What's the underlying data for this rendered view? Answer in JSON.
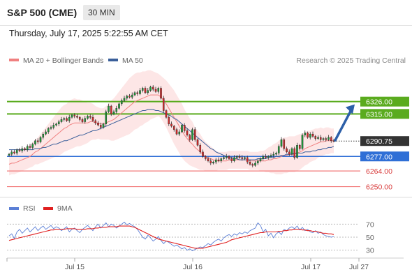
{
  "header": {
    "symbol": "S&P 500 (CME)",
    "timeframe": "30 MIN",
    "timestamp": "Thursday, July 17, 2025 5:22:55 AM CET"
  },
  "legend": {
    "ma20_label": "MA 20 + Bollinger Bands",
    "ma50_label": "MA 50",
    "copyright": "Research © 2025 Trading Central",
    "ma20_color": "#f08080",
    "ma50_color": "#3a5f9a"
  },
  "rsi_legend": {
    "rsi_label": "RSI",
    "ma_label": "9MA",
    "rsi_color": "#5b7fd6",
    "ma_color": "#e02020"
  },
  "chart_data": [
    {
      "type": "candlestick",
      "title": "",
      "x_labels": [
        "Jul 15",
        "Jul 16",
        "Jul 17",
        "Jul 27"
      ],
      "ylim": [
        6241,
        6347
      ],
      "current_price": {
        "value": 6290.75,
        "label": "6290.75",
        "color": "#333333"
      },
      "levels": [
        {
          "value": 6326.0,
          "label": "6326.00",
          "kind": "resistance",
          "color": "#5aab1e"
        },
        {
          "value": 6315.0,
          "label": "6315.00",
          "kind": "resistance",
          "color": "#5aab1e"
        },
        {
          "value": 6277.0,
          "label": "6277.00",
          "kind": "pivot",
          "color": "#2f6fd6"
        },
        {
          "value": 6264.0,
          "label": "6264.00",
          "kind": "support",
          "color": "#f27a7a"
        },
        {
          "value": 6250.0,
          "label": "6250.00",
          "kind": "support",
          "color": "#f27a7a"
        }
      ],
      "candles_close": [
        6279,
        6281,
        6280,
        6283,
        6282,
        6284,
        6283,
        6286,
        6285,
        6288,
        6291,
        6290,
        6294,
        6297,
        6299,
        6302,
        6303,
        6305,
        6306,
        6308,
        6310,
        6311,
        6309,
        6312,
        6314,
        6313,
        6312,
        6310,
        6308,
        6311,
        6313,
        6312,
        6309,
        6307,
        6305,
        6303,
        6306,
        6317,
        6322,
        6315,
        6317,
        6320,
        6324,
        6327,
        6329,
        6331,
        6330,
        6332,
        6334,
        6333,
        6336,
        6338,
        6334,
        6336,
        6339,
        6337,
        6335,
        6338,
        6329,
        6318,
        6312,
        6306,
        6304,
        6301,
        6297,
        6299,
        6305,
        6300,
        6296,
        6292,
        6301,
        6292,
        6287,
        6281,
        6277,
        6275,
        6273,
        6271,
        6272,
        6274,
        6273,
        6275,
        6276,
        6277,
        6275,
        6273,
        6276,
        6277,
        6276,
        6275,
        6276,
        6272,
        6270,
        6269,
        6271,
        6273,
        6275,
        6277,
        6276,
        6277,
        6278,
        6279,
        6280,
        6286,
        6292,
        6284,
        6281,
        6279,
        6284,
        6276,
        6287,
        6284,
        6296,
        6298,
        6294,
        6297,
        6295,
        6293,
        6294,
        6292,
        6293,
        6292,
        6294,
        6291,
        6290.75
      ],
      "ma20": [
        6270,
        6271,
        6271,
        6272,
        6273,
        6274,
        6275,
        6276,
        6277,
        6279,
        6281,
        6282,
        6284,
        6286,
        6288,
        6290,
        6292,
        6294,
        6296,
        6298,
        6300,
        6302,
        6303,
        6305,
        6306,
        6307,
        6307,
        6307,
        6307,
        6307,
        6307,
        6308,
        6308,
        6307,
        6307,
        6306,
        6306,
        6307,
        6308,
        6309,
        6310,
        6312,
        6314,
        6316,
        6318,
        6320,
        6322,
        6324,
        6326,
        6327,
        6328,
        6329,
        6330,
        6331,
        6332,
        6332,
        6332,
        6332,
        6330,
        6327,
        6324,
        6320,
        6316,
        6312,
        6308,
        6304,
        6300,
        6296,
        6293,
        6290,
        6288,
        6285,
        6283,
        6281,
        6279,
        6277,
        6276,
        6275,
        6274,
        6273,
        6273,
        6273,
        6273,
        6273,
        6274,
        6274,
        6274,
        6274,
        6274,
        6274,
        6274,
        6274,
        6273,
        6273,
        6273,
        6273,
        6273,
        6273,
        6273,
        6274,
        6274,
        6275,
        6275,
        6276,
        6277,
        6278,
        6278,
        6279,
        6279,
        6279,
        6280,
        6281,
        6282,
        6284,
        6285,
        6286,
        6287,
        6288,
        6289,
        6290,
        6290,
        6291,
        6291,
        6291,
        6291
      ],
      "ma50": [
        6283,
        6283,
        6283,
        6283,
        6283,
        6283,
        6283,
        6283,
        6283,
        6283,
        6284,
        6284,
        6284,
        6285,
        6285,
        6286,
        6287,
        6288,
        6288,
        6289,
        6290,
        6291,
        6291,
        6292,
        6293,
        6294,
        6295,
        6296,
        6296,
        6297,
        6298,
        6299,
        6300,
        6300,
        6301,
        6302,
        6303,
        6304,
        6305,
        6306,
        6307,
        6308,
        6309,
        6310,
        6311,
        6312,
        6313,
        6314,
        6315,
        6316,
        6317,
        6318,
        6318,
        6319,
        6319,
        6319,
        6318,
        6318,
        6317,
        6316,
        6315,
        6314,
        6313,
        6311,
        6310,
        6308,
        6306,
        6304,
        6302,
        6300,
        6298,
        6296,
        6294,
        6292,
        6290,
        6288,
        6286,
        6284,
        6283,
        6281,
        6280,
        6279,
        6278,
        6277,
        6276,
        6276,
        6275,
        6275,
        6274,
        6274,
        6274,
        6274,
        6274,
        6274,
        6274,
        6275,
        6275,
        6275,
        6275,
        6276,
        6276,
        6276,
        6277,
        6277,
        6278,
        6278,
        6279,
        6279,
        6279,
        6280,
        6280,
        6280,
        6280,
        6281,
        6281,
        6281,
        6282,
        6282,
        6283,
        6283,
        6284,
        6284,
        6285,
        6285,
        6286
      ],
      "bb_width": [
        10,
        10,
        10,
        10,
        10,
        10,
        10,
        10,
        10,
        11,
        11,
        12,
        13,
        14,
        15,
        16,
        17,
        18,
        19,
        20,
        21,
        21,
        21,
        22,
        22,
        22,
        21,
        21,
        20,
        19,
        18,
        17,
        16,
        15,
        14,
        14,
        14,
        15,
        16,
        18,
        19,
        20,
        21,
        22,
        23,
        24,
        25,
        25,
        25,
        25,
        24,
        24,
        23,
        23,
        22,
        21,
        20,
        19,
        19,
        20,
        21,
        22,
        23,
        24,
        24,
        24,
        24,
        23,
        22,
        21,
        20,
        18,
        17,
        16,
        14,
        13,
        12,
        11,
        10,
        9,
        8,
        8,
        8,
        8,
        8,
        8,
        8,
        8,
        8,
        8,
        8,
        8,
        8,
        8,
        8,
        8,
        9,
        9,
        10,
        11,
        12,
        13,
        14,
        15,
        16,
        16,
        16,
        16,
        16,
        16,
        16,
        16,
        15,
        15,
        15,
        14,
        14,
        14,
        13,
        13,
        12,
        12,
        12,
        11,
        11
      ],
      "arrow": {
        "from_value": 6290.75,
        "to_value": 6326.0
      }
    },
    {
      "type": "line",
      "title": "RSI",
      "x_labels": [
        "Jul 15",
        "Jul 16",
        "Jul 17",
        "Jul 27"
      ],
      "ylim": [
        20,
        80
      ],
      "y_ticks": [
        "70",
        "50",
        "30"
      ],
      "rsi": [
        52,
        55,
        48,
        58,
        62,
        56,
        60,
        64,
        58,
        62,
        66,
        60,
        64,
        67,
        62,
        65,
        68,
        63,
        66,
        64,
        60,
        63,
        66,
        58,
        62,
        64,
        60,
        57,
        62,
        65,
        68,
        64,
        60,
        66,
        70,
        64,
        68,
        72,
        66,
        70,
        68,
        64,
        67,
        70,
        73,
        69,
        71,
        68,
        66,
        62,
        56,
        50,
        47,
        53,
        49,
        44,
        47,
        51,
        45,
        40,
        44,
        42,
        39,
        36,
        38,
        35,
        32,
        34,
        30,
        32,
        29,
        31,
        33,
        35,
        34,
        37,
        40,
        38,
        42,
        45,
        47,
        44,
        49,
        52,
        54,
        51,
        55,
        53,
        57,
        55,
        58,
        56,
        60,
        62,
        64,
        72,
        68,
        58,
        62,
        52,
        56,
        49,
        55,
        58,
        54,
        62,
        60,
        64,
        66,
        63,
        67,
        61,
        65,
        60,
        62,
        58,
        57,
        60,
        56,
        58,
        54,
        52,
        51,
        50,
        51
      ],
      "ma": [
        45,
        46,
        47,
        48,
        49,
        50,
        51,
        52,
        53,
        54,
        55,
        56,
        57,
        58,
        59,
        60,
        61,
        61,
        62,
        62,
        62,
        62,
        63,
        63,
        63,
        63,
        62,
        62,
        62,
        62,
        63,
        63,
        63,
        64,
        64,
        65,
        65,
        65,
        66,
        66,
        66,
        66,
        67,
        67,
        67,
        67,
        67,
        66,
        65,
        63,
        61,
        59,
        57,
        55,
        53,
        51,
        49,
        47,
        46,
        45,
        44,
        43,
        42,
        41,
        40,
        39,
        38,
        37,
        36,
        35,
        34,
        33,
        33,
        33,
        33,
        34,
        35,
        36,
        37,
        38,
        39,
        40,
        41,
        42,
        44,
        46,
        47,
        48,
        49,
        50,
        51,
        52,
        53,
        54,
        55,
        56,
        57,
        57,
        58,
        58,
        58,
        58,
        58,
        59,
        59,
        60,
        60,
        61,
        61,
        62,
        62,
        62,
        61,
        61,
        60,
        60,
        59,
        59,
        58,
        57,
        56,
        56,
        55,
        55,
        54
      ]
    }
  ]
}
